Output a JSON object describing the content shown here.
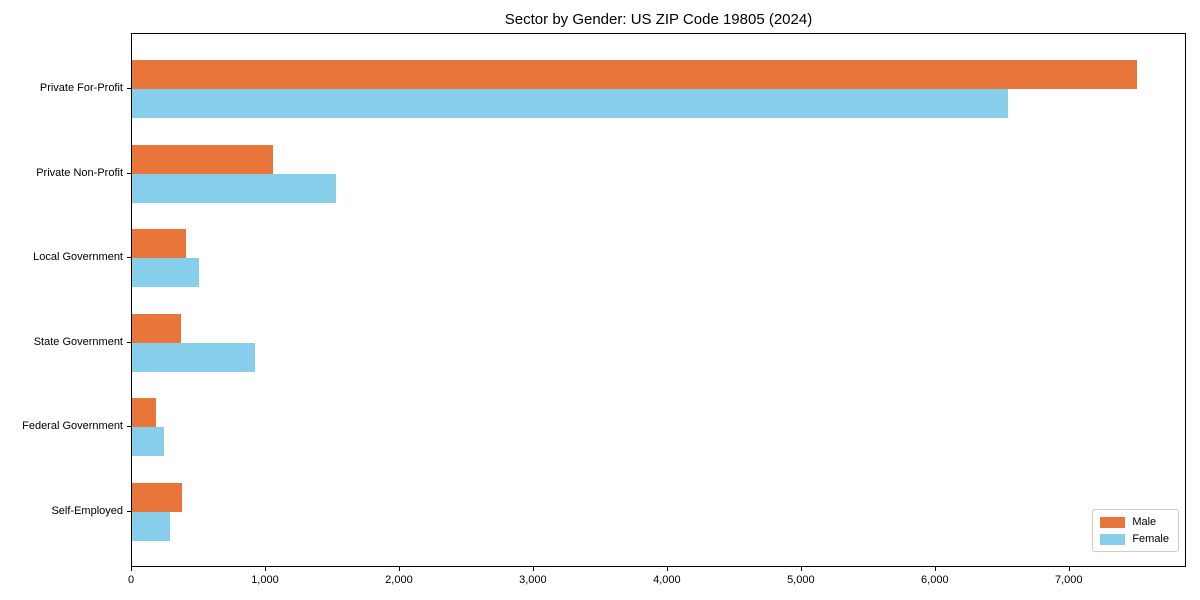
{
  "chart_data": {
    "type": "bar",
    "orientation": "horizontal",
    "title": "Sector by Gender: US ZIP Code 19805 (2024)",
    "categories": [
      "Private For-Profit",
      "Private Non-Profit",
      "Local Government",
      "State Government",
      "Federal Government",
      "Self-Employed"
    ],
    "series": [
      {
        "name": "Male",
        "color": "#E8763B",
        "values": [
          7500,
          1050,
          400,
          365,
          180,
          375
        ]
      },
      {
        "name": "Female",
        "color": "#87CEEB",
        "values": [
          6540,
          1520,
          500,
          915,
          240,
          285
        ]
      }
    ],
    "xlim": [
      0,
      7875
    ],
    "xticks": [
      0,
      1000,
      2000,
      3000,
      4000,
      5000,
      6000,
      7000
    ],
    "xtick_labels": [
      "0",
      "1,000",
      "2,000",
      "3,000",
      "4,000",
      "5,000",
      "6,000",
      "7,000"
    ],
    "xlabel": "",
    "ylabel": "",
    "grid": false,
    "legend": {
      "position": "lower right",
      "entries": [
        "Male",
        "Female"
      ]
    }
  },
  "colors": {
    "male": "#E8763B",
    "female": "#87CEEB",
    "spine": "#000000",
    "background": "#ffffff",
    "legend_border": "#cccccc"
  }
}
